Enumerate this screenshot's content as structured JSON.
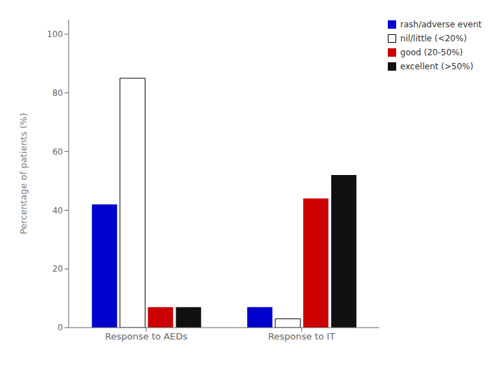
{
  "chart_data": {
    "type": "bar",
    "y_label": "Percentage of patients (%)",
    "categories": [
      "Response to AEDs",
      "Response to IT"
    ],
    "series": [
      {
        "name": "rash/adverse event",
        "color": "#0000CC",
        "values": [
          42,
          7
        ]
      },
      {
        "name": "nil/little (<20%)",
        "color": "#FFFFFF",
        "values": [
          85,
          3
        ]
      },
      {
        "name": "good (20-50%)",
        "color": "#CC0000",
        "values": [
          7,
          44
        ]
      },
      {
        "name": "excellent (>50%)",
        "color": "#111111",
        "values": [
          7,
          52
        ]
      }
    ],
    "ylim": [
      0,
      105
    ],
    "yticks": [
      0,
      20,
      40,
      60,
      80,
      100
    ],
    "grid": false,
    "legend": "upper right"
  }
}
